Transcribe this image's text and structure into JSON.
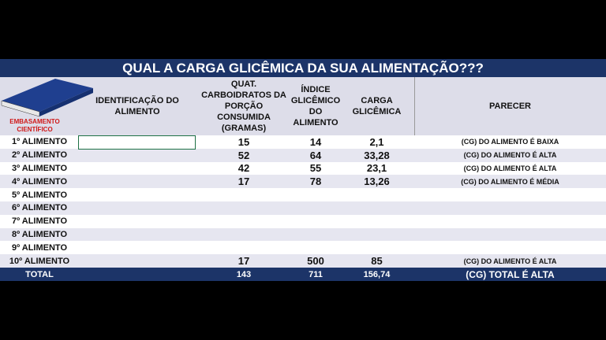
{
  "title": "QUAL A CARGA GLICÊMICA DA SUA ALIMENTAÇÃO???",
  "book_label": "EMBASAMENTO CIENTÍFICO",
  "headers": [
    "IDENTIFICAÇÃO DO ALIMENTO",
    "QUAT. CARBOIDRATOS DA PORÇÃO CONSUMIDA (GRAMAS)",
    "ÍNDICE GLICÊMICO DO ALIMENTO",
    "CARGA GLICÊMICA",
    "PARECER"
  ],
  "rows": [
    [
      "1º ALIMENTO",
      "15",
      "14",
      "2,1",
      "(CG) DO ALIMENTO É BAIXA"
    ],
    [
      "2º ALIMENTO",
      "52",
      "64",
      "33,28",
      "(CG) DO ALIMENTO É ALTA"
    ],
    [
      "3º ALIMENTO",
      "42",
      "55",
      "23,1",
      "(CG) DO ALIMENTO É ALTA"
    ],
    [
      "4º ALIMENTO",
      "17",
      "78",
      "13,26",
      "(CG) DO ALIMENTO É MÉDIA"
    ],
    [
      "5º ALIMENTO"
    ],
    [
      "6º ALIMENTO"
    ],
    [
      "7º ALIMENTO"
    ],
    [
      "8º ALIMENTO"
    ],
    [
      "9º ALIMENTO"
    ],
    [
      "10º ALIMENTO",
      "17",
      "500",
      "85",
      "(CG) DO ALIMENTO É ALTA"
    ]
  ],
  "total": [
    "TOTAL",
    "143",
    "711",
    "156,74",
    "(CG) TOTAL É ALTA"
  ]
}
